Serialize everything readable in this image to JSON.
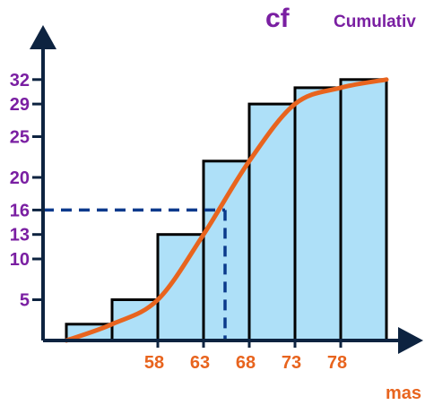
{
  "chart_data": {
    "type": "bar",
    "title": "Cumulativ",
    "ylabel": "cf",
    "xlabel": "mas",
    "ylim": [
      0,
      35
    ],
    "y_ticks": [
      5,
      10,
      13,
      16,
      20,
      25,
      29,
      32
    ],
    "x_ticks": [
      "58",
      "63",
      "68",
      "73",
      "78"
    ],
    "bars": [
      {
        "x0": 48,
        "x1": 53,
        "value": 2
      },
      {
        "x0": 53,
        "x1": 58,
        "value": 5
      },
      {
        "x0": 58,
        "x1": 63,
        "value": 13
      },
      {
        "x0": 63,
        "x1": 68,
        "value": 22
      },
      {
        "x0": 68,
        "x1": 73,
        "value": 29
      },
      {
        "x0": 73,
        "x1": 78,
        "value": 31
      },
      {
        "x0": 78,
        "x1": 83,
        "value": 32
      }
    ],
    "curve": [
      {
        "x": 48,
        "y": 0
      },
      {
        "x": 53,
        "y": 2
      },
      {
        "x": 58,
        "y": 5
      },
      {
        "x": 63,
        "y": 13
      },
      {
        "x": 68,
        "y": 22
      },
      {
        "x": 73,
        "y": 29
      },
      {
        "x": 78,
        "y": 31
      },
      {
        "x": 83,
        "y": 32
      }
    ],
    "reference": {
      "y": 16,
      "x": 68
    },
    "colors": {
      "bar_fill": "#aee0f8",
      "bar_stroke": "#000000",
      "curve": "#e8641e",
      "reference": "#0b3a8c",
      "axis": "#0d2340"
    }
  }
}
